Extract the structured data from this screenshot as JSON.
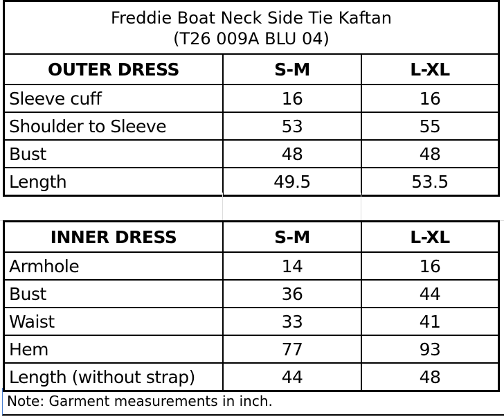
{
  "title_line1": "Freddie Boat Neck Side Tie Kaftan",
  "title_line2": "(T26 009A BLU 04)",
  "outer": {
    "header": [
      "OUTER DRESS",
      "S-M",
      "L-XL"
    ],
    "rows": [
      [
        "Sleeve cuff",
        "16",
        "16"
      ],
      [
        "Shoulder to Sleeve",
        "53",
        "55"
      ],
      [
        "Bust",
        "48",
        "48"
      ],
      [
        "Length",
        "49.5",
        "53.5"
      ]
    ]
  },
  "inner": {
    "header": [
      "INNER DRESS",
      "S-M",
      "L-XL"
    ],
    "rows": [
      [
        "Armhole",
        "14",
        "16"
      ],
      [
        "Bust",
        "36",
        "44"
      ],
      [
        "Waist",
        "33",
        "41"
      ],
      [
        "Hem",
        "77",
        "93"
      ],
      [
        "Length (without strap)",
        "44",
        "48"
      ]
    ]
  },
  "note": "Note: Garment measurements in inch."
}
